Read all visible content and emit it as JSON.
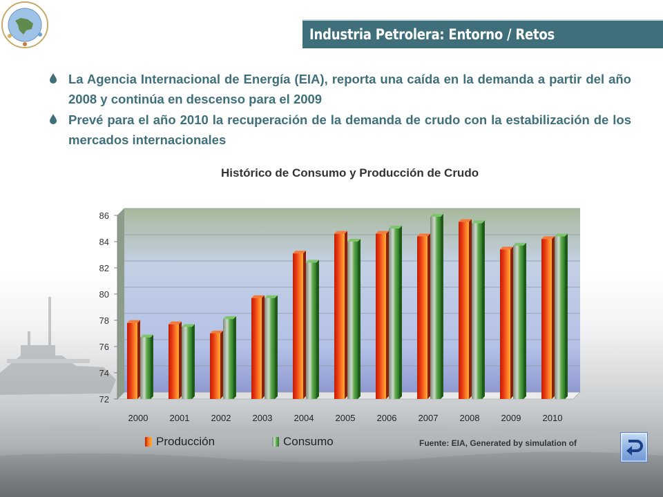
{
  "header": {
    "title": "Industria Petrolera: Entorno / Retos"
  },
  "bullets": [
    "La Agencia Internacional de Energía (EIA), reporta una caída en la demanda a partir del año 2008 y continúa en descenso para el 2009",
    "Prevé para el año 2010 la recuperación de la demanda de crudo con la estabilización de los mercados internacionales"
  ],
  "colors": {
    "title_bar": "#3f6f7a",
    "bullet_text": "#3f6f7a",
    "produccion": "#e63a14",
    "consumo": "#3e9632"
  },
  "chart_data": {
    "type": "bar",
    "style": "3d-clustered",
    "title": "Histórico de Consumo y Producción de Crudo",
    "categories": [
      "2000",
      "2001",
      "2002",
      "2003",
      "2004",
      "2005",
      "2006",
      "2007",
      "2008",
      "2009",
      "2010"
    ],
    "series": [
      {
        "name": "Producción",
        "values": [
          77.8,
          77.7,
          77.0,
          79.7,
          83.1,
          84.6,
          84.6,
          84.4,
          85.5,
          83.4,
          84.2
        ]
      },
      {
        "name": "Consumo",
        "values": [
          76.7,
          77.5,
          78.1,
          79.7,
          82.4,
          84.0,
          85.0,
          85.9,
          85.4,
          83.7,
          84.4
        ]
      }
    ],
    "ylim": [
      72,
      86
    ],
    "yticks": [
      "72",
      "74",
      "76",
      "78",
      "80",
      "82",
      "84",
      "86"
    ],
    "grid": true,
    "legend": "bottom",
    "source": "Fuente: EIA, Generated by simulation of"
  },
  "nav": {
    "return_icon": "return-arrow-icon"
  }
}
